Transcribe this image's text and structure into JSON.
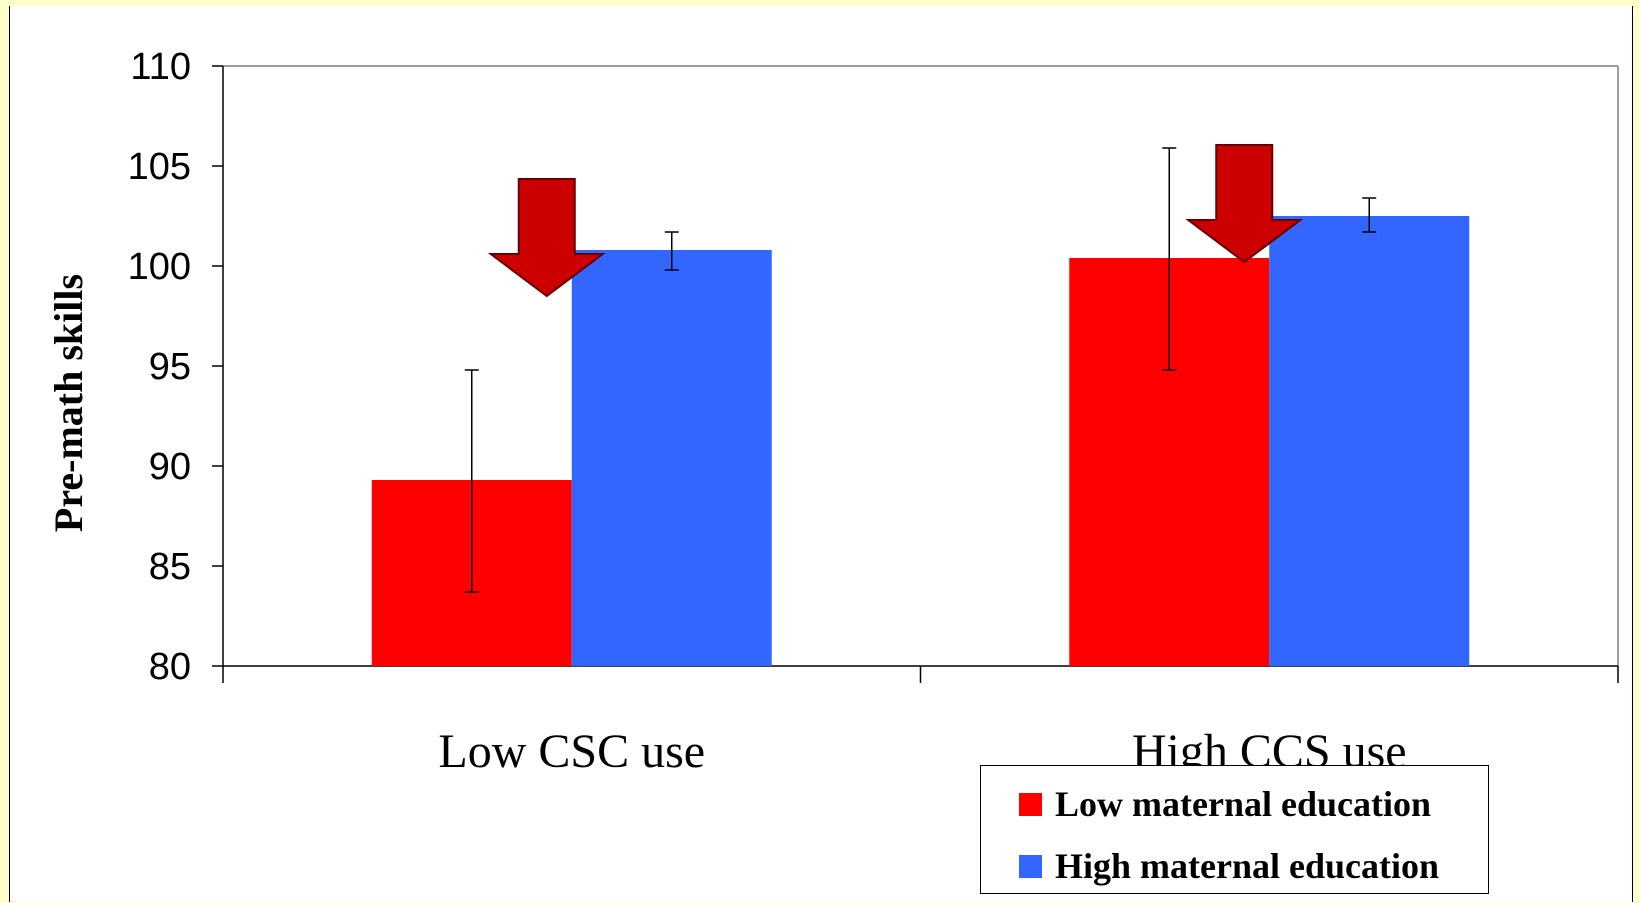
{
  "chart_data": {
    "type": "bar",
    "title": "",
    "xlabel": "",
    "ylabel": "Pre-math skills",
    "ylim": [
      80,
      110
    ],
    "yticks": [
      "80",
      "85",
      "90",
      "95",
      "100",
      "105",
      "110"
    ],
    "categories": [
      "Low CSC use",
      "High CCS use"
    ],
    "series": [
      {
        "name": "Low maternal education",
        "color": "#ff0000",
        "values": [
          89.3,
          100.4
        ],
        "error_low": [
          83.7,
          94.8
        ],
        "error_high": [
          94.8,
          105.9
        ]
      },
      {
        "name": "High maternal education",
        "color": "#3366ff",
        "values": [
          100.8,
          102.5
        ],
        "error_low": [
          99.8,
          101.7
        ],
        "error_high": [
          101.7,
          103.4
        ]
      }
    ],
    "annotations": [
      {
        "type": "down-arrow",
        "color": "#cc0000",
        "category": "Low CSC use"
      },
      {
        "type": "down-arrow",
        "color": "#cc0000",
        "category": "High CCS use"
      }
    ],
    "grid": false,
    "legend_position": "bottom-right"
  }
}
